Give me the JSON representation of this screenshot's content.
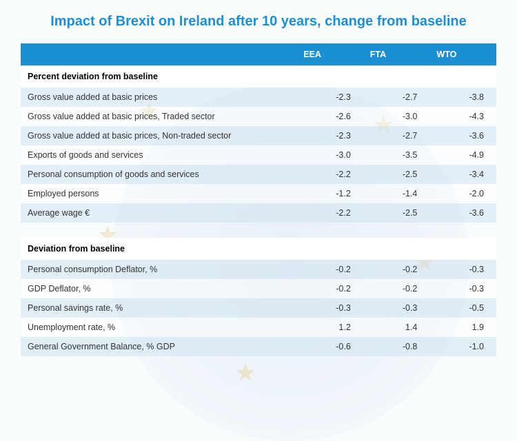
{
  "title": "Impact of Brexit on Ireland after 10 years, change from baseline",
  "table": {
    "columns": [
      "",
      "EEA",
      "FTA",
      "WTO"
    ],
    "column_alignment": [
      "left",
      "right",
      "right",
      "right"
    ],
    "header_bg": "#1b8fd5",
    "header_text_color": "#ffffff",
    "row_alt_bg": "#d2e4f0",
    "row_base_bg": "#ffffff",
    "text_color": "#333333",
    "font_size_pt": 9.5,
    "sections": [
      {
        "label": "Percent deviation from baseline",
        "rows": [
          {
            "label": "Gross value added at basic prices",
            "values": [
              "-2.3",
              "-2.7",
              "-3.8"
            ]
          },
          {
            "label": "Gross value added at basic prices, Traded sector",
            "values": [
              "-2.6",
              "-3.0",
              "-4.3"
            ]
          },
          {
            "label": "Gross value added at basic prices, Non-traded sector",
            "values": [
              "-2.3",
              "-2.7",
              "-3.6"
            ]
          },
          {
            "label": "Exports of goods and services",
            "values": [
              "-3.0",
              "-3.5",
              "-4.9"
            ]
          },
          {
            "label": "Personal consumption of goods and services",
            "values": [
              "-2.2",
              "-2.5",
              "-3.4"
            ]
          },
          {
            "label": "Employed persons",
            "values": [
              "-1.2",
              "-1.4",
              "-2.0"
            ]
          },
          {
            "label": "Average wage €",
            "values": [
              "-2.2",
              "-2.5",
              "-3.6"
            ]
          }
        ]
      },
      {
        "label": "Deviation from baseline",
        "rows": [
          {
            "label": "Personal consumption Deflator, %",
            "values": [
              "-0.2",
              "-0.2",
              "-0.3"
            ]
          },
          {
            "label": "GDP Deflator, %",
            "values": [
              "-0.2",
              "-0.2",
              "-0.3"
            ]
          },
          {
            "label": "Personal savings rate, %",
            "values": [
              "-0.3",
              "-0.3",
              "-0.5"
            ]
          },
          {
            "label": "Unemployment rate, %",
            "values": [
              "1.2",
              "1.4",
              "1.9"
            ]
          },
          {
            "label": "General Government Balance, % GDP",
            "values": [
              "-0.6",
              "-0.8",
              "-1.0"
            ]
          }
        ]
      }
    ]
  },
  "colors": {
    "title": "#1b8fd5",
    "background": "#f8fcfd",
    "star": "rgba(230,200,120,0.35)"
  }
}
